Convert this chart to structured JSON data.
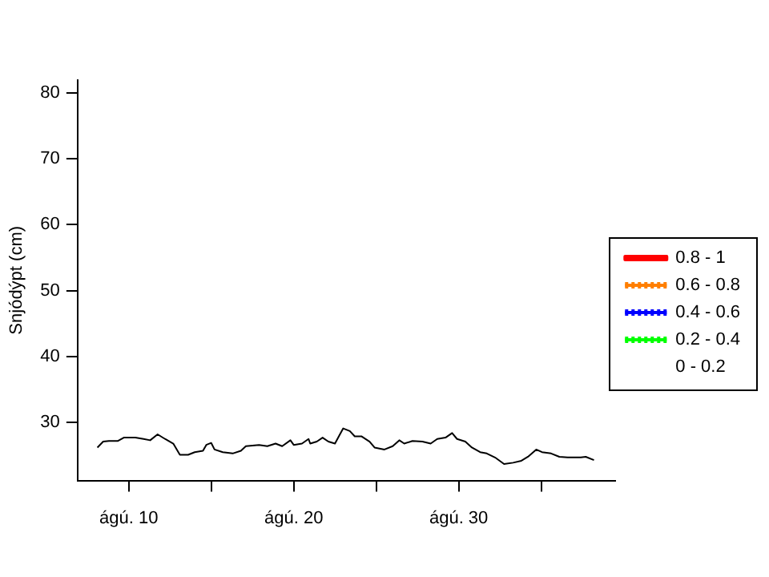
{
  "chart_data": {
    "type": "line",
    "ylabel": "Snjódýpt (cm)",
    "xlim": [
      6.9,
      39.5
    ],
    "ylim": [
      21.2,
      81.9
    ],
    "xticks": [
      {
        "value": 10,
        "label": "ágú. 10"
      },
      {
        "value": 15,
        "label": null
      },
      {
        "value": 20,
        "label": "ágú. 20"
      },
      {
        "value": 25,
        "label": null
      },
      {
        "value": 30,
        "label": "ágú. 30"
      },
      {
        "value": 35,
        "label": null
      }
    ],
    "yticks": [
      30,
      40,
      50,
      60,
      70,
      80
    ],
    "grid": false,
    "legend": "right",
    "marker": "none",
    "series": [
      {
        "color": "#000000",
        "line_style": "solid",
        "x": [
          8.1,
          8.45,
          8.8,
          9.35,
          9.7,
          10.4,
          10.9,
          11.3,
          11.75,
          12.2,
          12.7,
          13.1,
          13.6,
          14.0,
          14.5,
          14.7,
          15.0,
          15.2,
          15.7,
          16.3,
          16.8,
          17.1,
          17.9,
          18.4,
          18.9,
          19.3,
          19.8,
          20.0,
          20.5,
          20.9,
          21.0,
          21.4,
          21.75,
          22.1,
          22.5,
          22.8,
          23.0,
          23.4,
          23.7,
          24.1,
          24.6,
          24.9,
          25.5,
          26.0,
          26.4,
          26.7,
          27.2,
          27.8,
          28.3,
          28.7,
          29.2,
          29.6,
          29.9,
          30.4,
          30.8,
          31.3,
          31.7,
          32.2,
          32.75,
          33.3,
          33.8,
          34.2,
          34.7,
          35.05,
          35.6,
          36.1,
          36.6,
          37.4,
          37.7,
          38.2
        ],
        "values": [
          26.2,
          27.1,
          27.2,
          27.2,
          27.7,
          27.7,
          27.5,
          27.3,
          28.2,
          27.5,
          26.8,
          25.1,
          25.1,
          25.5,
          25.7,
          26.6,
          26.9,
          25.9,
          25.5,
          25.3,
          25.7,
          26.4,
          26.6,
          26.4,
          26.8,
          26.4,
          27.3,
          26.6,
          26.8,
          27.5,
          26.8,
          27.1,
          27.7,
          27.1,
          26.8,
          28.2,
          29.1,
          28.7,
          27.9,
          27.9,
          27.1,
          26.2,
          25.9,
          26.4,
          27.3,
          26.8,
          27.2,
          27.1,
          26.8,
          27.5,
          27.7,
          28.4,
          27.5,
          27.1,
          26.2,
          25.5,
          25.3,
          24.7,
          23.7,
          23.9,
          24.2,
          24.8,
          25.9,
          25.5,
          25.3,
          24.8,
          24.7,
          24.7,
          24.8,
          24.3
        ]
      },
      {
        "name": "0.8 - 1",
        "color": "#ff0000",
        "line_style": "solid"
      },
      {
        "name": "0.6 - 0.8",
        "color": "#ff7f00",
        "line_style": "dotted"
      },
      {
        "name": "0.4 - 0.6",
        "color": "#0000ff",
        "line_style": "dotted"
      },
      {
        "name": "0.2 - 0.4",
        "color": "#00ff00",
        "line_style": "dotted"
      },
      {
        "name": "0 - 0.2",
        "line_style": "solid"
      }
    ]
  }
}
